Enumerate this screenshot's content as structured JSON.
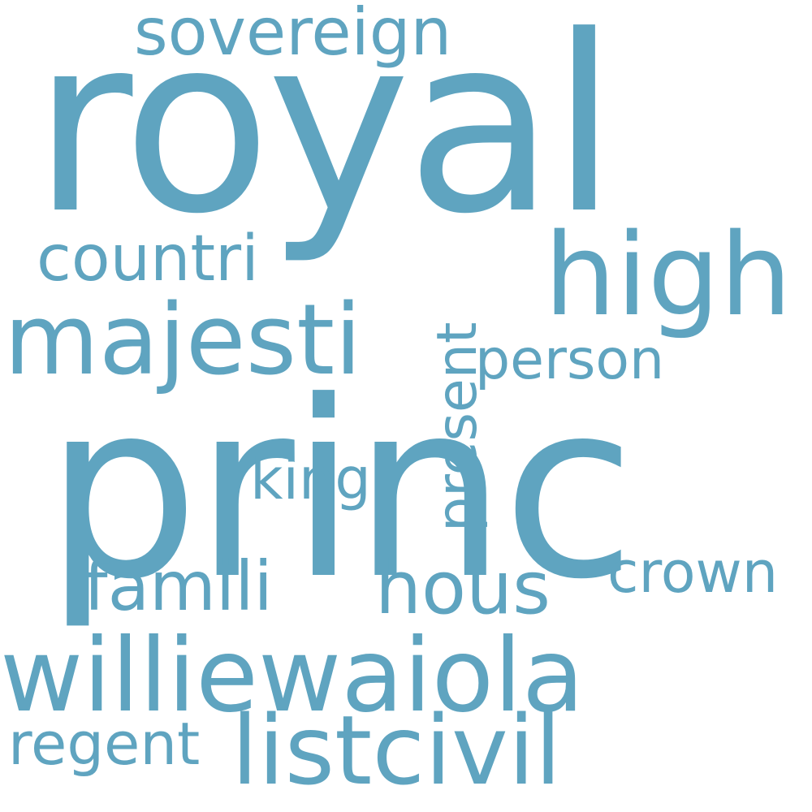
{
  "wordcloud": {
    "color": "#5fa4c0",
    "background": "#ffffff",
    "words": {
      "royal": "royal",
      "sovereign": "sovereign",
      "high": "high",
      "countri": "countri",
      "majesti": "majesti",
      "person": "person",
      "present": "present",
      "princ": "princ",
      "king": "king",
      "famili": "famili",
      "hous": "hous",
      "crown": "crown",
      "williewaiola": "williewaiola",
      "regent": "regent",
      "listcivil": "listcivil"
    }
  }
}
